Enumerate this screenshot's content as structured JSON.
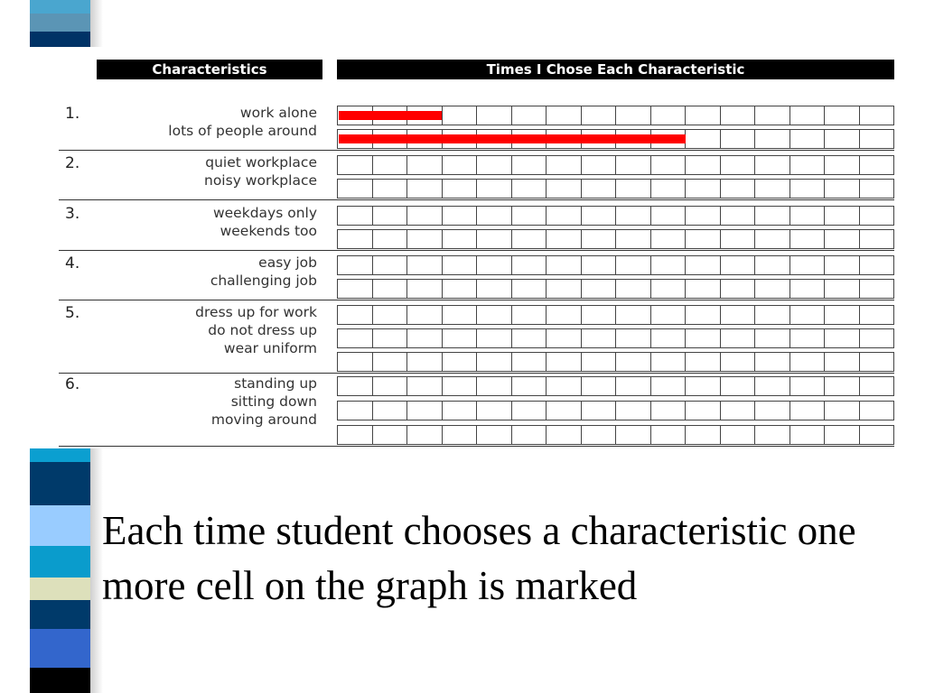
{
  "colors": {
    "bar": "#ff0000",
    "header_bg": "#000000",
    "stripe": [
      "#4aa6cf",
      "#5b95b5",
      "#003366",
      "#0b9fd0",
      "#003a6a",
      "#99ccff",
      "#0a9ccc",
      "#dde0bb",
      "#003a6a",
      "#3366cc",
      "#000000"
    ]
  },
  "chart_data": {
    "type": "bar",
    "orientation": "horizontal",
    "headers": {
      "left": "Characteristics",
      "right": "Times I Chose Each Characteristic"
    },
    "max_cells": 16,
    "groups": [
      {
        "number": "1.",
        "items": [
          {
            "label": "work alone",
            "value": 3
          },
          {
            "label": "lots of people around",
            "value": 10
          }
        ]
      },
      {
        "number": "2.",
        "items": [
          {
            "label": "quiet workplace",
            "value": 0
          },
          {
            "label": "noisy workplace",
            "value": 0
          }
        ]
      },
      {
        "number": "3.",
        "items": [
          {
            "label": "weekdays only",
            "value": 0
          },
          {
            "label": "weekends too",
            "value": 0
          }
        ]
      },
      {
        "number": "4.",
        "items": [
          {
            "label": "easy job",
            "value": 0
          },
          {
            "label": "challenging job",
            "value": 0
          }
        ]
      },
      {
        "number": "5.",
        "items": [
          {
            "label": "dress up for work",
            "value": 0
          },
          {
            "label": "do not dress up",
            "value": 0
          },
          {
            "label": "wear uniform",
            "value": 0
          }
        ]
      },
      {
        "number": "6.",
        "items": [
          {
            "label": "standing up",
            "value": 0
          },
          {
            "label": "sitting down",
            "value": 0
          },
          {
            "label": "moving around",
            "value": 0
          }
        ]
      }
    ]
  },
  "caption": "Each time student chooses a characteristic one more cell on the graph is marked"
}
